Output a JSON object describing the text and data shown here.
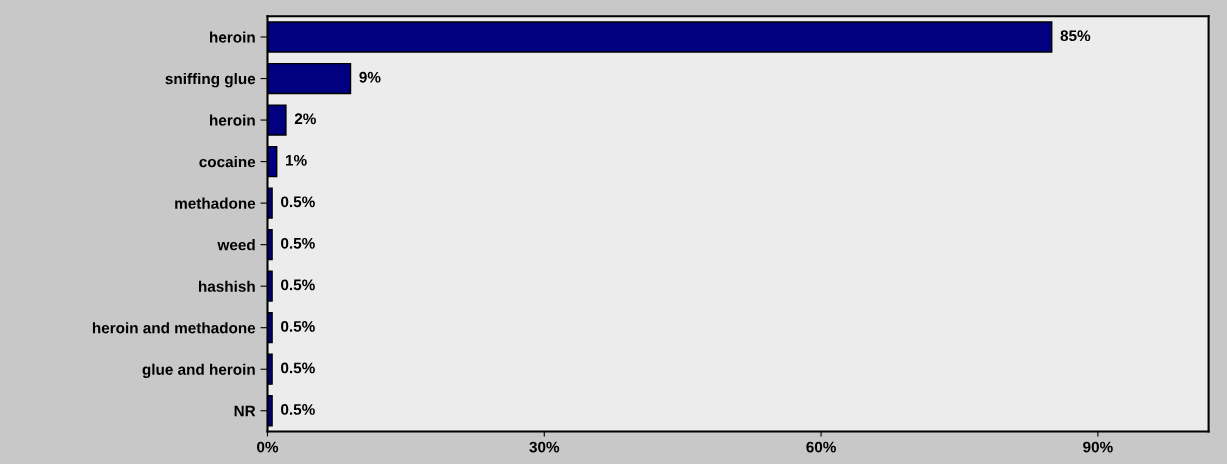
{
  "chart_data": {
    "type": "bar",
    "orientation": "horizontal",
    "categories": [
      "heroin",
      "sniffing glue",
      "heroin",
      "cocaine",
      "methadone",
      "weed",
      "hashish",
      "heroin and methadone",
      "glue and heroin",
      "NR"
    ],
    "values": [
      85,
      9,
      2,
      1,
      0.5,
      0.5,
      0.5,
      0.5,
      0.5,
      0.5
    ],
    "value_labels": [
      "85%",
      "9%",
      "2%",
      "1%",
      "0.5%",
      "0.5%",
      "0.5%",
      "0.5%",
      "0.5%",
      "0.5%"
    ],
    "color": "#000080",
    "xlim": [
      0,
      102
    ],
    "xticks": [
      {
        "value": 0,
        "label": "0%"
      },
      {
        "value": 30,
        "label": "30%"
      },
      {
        "value": 60,
        "label": "60%"
      },
      {
        "value": 90,
        "label": "90%"
      }
    ],
    "grid": false,
    "legend": false
  }
}
